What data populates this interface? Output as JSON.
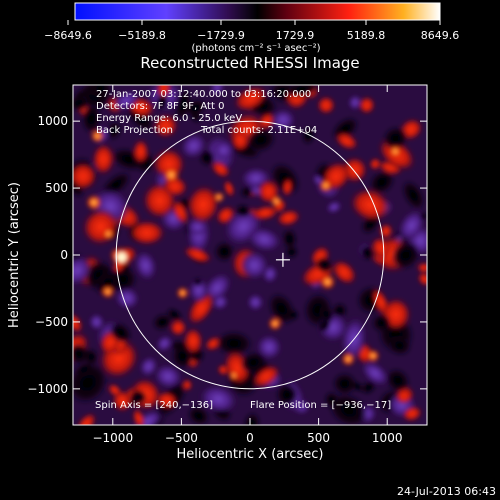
{
  "colorbar": {
    "tick_labels": [
      "−8649.6",
      "−5189.8",
      "−1729.9",
      "1729.9",
      "5189.8",
      "8649.6"
    ],
    "unit_label": "(photons cm⁻² s⁻¹ asec⁻²)"
  },
  "chart_data": {
    "type": "heatmap",
    "title": "Reconstructed RHESSI Image",
    "xlabel": "Heliocentric X (arcsec)",
    "ylabel": "Heliocentric Y (arcsec)",
    "xlim": [
      -1290,
      1290
    ],
    "ylim": [
      -1270,
      1270
    ],
    "x_ticks": [
      -1000,
      -500,
      0,
      500,
      1000
    ],
    "y_ticks": [
      -1000,
      -500,
      0,
      500,
      1000
    ],
    "x_tick_labels": [
      "−1000",
      "−500",
      "0",
      "500",
      "1000"
    ],
    "y_tick_labels": [
      "−1000",
      "−500",
      "0",
      "500",
      "1000"
    ],
    "color_scale": {
      "min": -8649.6,
      "max": 8649.6
    },
    "solar_limb_radius": 975,
    "flare_position": [
      -936,
      -17
    ],
    "cursor_position": [
      240,
      -136
    ],
    "annotations": {
      "time_range": "27-Jan-2007 03:12:40.000 to 03:16:20.000",
      "detectors": "Detectors: 7F 8F 9F, Att 0",
      "energy_range": "Energy Range: 6.0 - 25.0 keV",
      "method": "Back Projection",
      "total_counts": "Total counts: 2.11E+04",
      "spin_axis": "Spin Axis = [240,−136]",
      "flare_position_label": "Flare Position = [−936,−17]"
    },
    "colors": {
      "negative": "#0000ff",
      "background": "#2a0c40",
      "positive": "#ff3010",
      "peak": "#ffffff"
    },
    "grid": false
  },
  "footer": {
    "date": "24-Jul-2013 06:43"
  }
}
